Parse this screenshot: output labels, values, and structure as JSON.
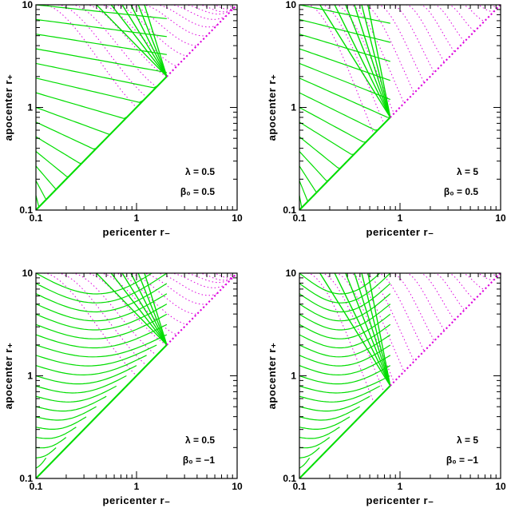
{
  "chart_data": [
    {
      "type": "line",
      "panel": "top-left",
      "xlabel": "pericenter r₋",
      "ylabel": "apocenter r₊",
      "xlim": [
        0.1,
        10
      ],
      "ylim": [
        0.1,
        10
      ],
      "xscale": "log",
      "yscale": "log",
      "xticks": [
        "0.1",
        "1",
        "10"
      ],
      "yticks": [
        "0.1",
        "1",
        "10"
      ],
      "annotations": [
        "λ  =  0.5",
        "β₀  =  0.5"
      ],
      "r_max": 2.0,
      "green_color": "#00dd00",
      "magenta_color": "#dd00dd"
    },
    {
      "type": "line",
      "panel": "top-right",
      "xlabel": "pericenter r₋",
      "ylabel": "apocenter r₊",
      "xlim": [
        0.1,
        10
      ],
      "ylim": [
        0.1,
        10
      ],
      "xscale": "log",
      "yscale": "log",
      "xticks": [
        "0.1",
        "1",
        "10"
      ],
      "yticks": [
        "0.1",
        "1",
        "10"
      ],
      "annotations": [
        "λ  =  5",
        "β₀  =  0.5"
      ],
      "r_max": 0.8,
      "green_color": "#00dd00",
      "magenta_color": "#dd00dd"
    },
    {
      "type": "line",
      "panel": "bottom-left",
      "xlabel": "pericenter r₋",
      "ylabel": "apocenter r₊",
      "xlim": [
        0.1,
        10
      ],
      "ylim": [
        0.1,
        10
      ],
      "xscale": "log",
      "yscale": "log",
      "xticks": [
        "0.1",
        "1",
        "10"
      ],
      "yticks": [
        "0.1",
        "1",
        "10"
      ],
      "annotations": [
        "λ  =  0.5",
        "β₀  =  −1"
      ],
      "r_max": 2.0,
      "green_color": "#00dd00",
      "magenta_color": "#dd00dd"
    },
    {
      "type": "line",
      "panel": "bottom-right",
      "xlabel": "pericenter r₋",
      "ylabel": "apocenter r₊",
      "xlim": [
        0.1,
        10
      ],
      "ylim": [
        0.1,
        10
      ],
      "xscale": "log",
      "yscale": "log",
      "xticks": [
        "0.1",
        "1",
        "10"
      ],
      "yticks": [
        "0.1",
        "1",
        "10"
      ],
      "annotations": [
        "λ  =  5",
        "β₀  =  −1"
      ],
      "r_max": 0.8,
      "green_color": "#00dd00",
      "magenta_color": "#dd00dd"
    }
  ]
}
